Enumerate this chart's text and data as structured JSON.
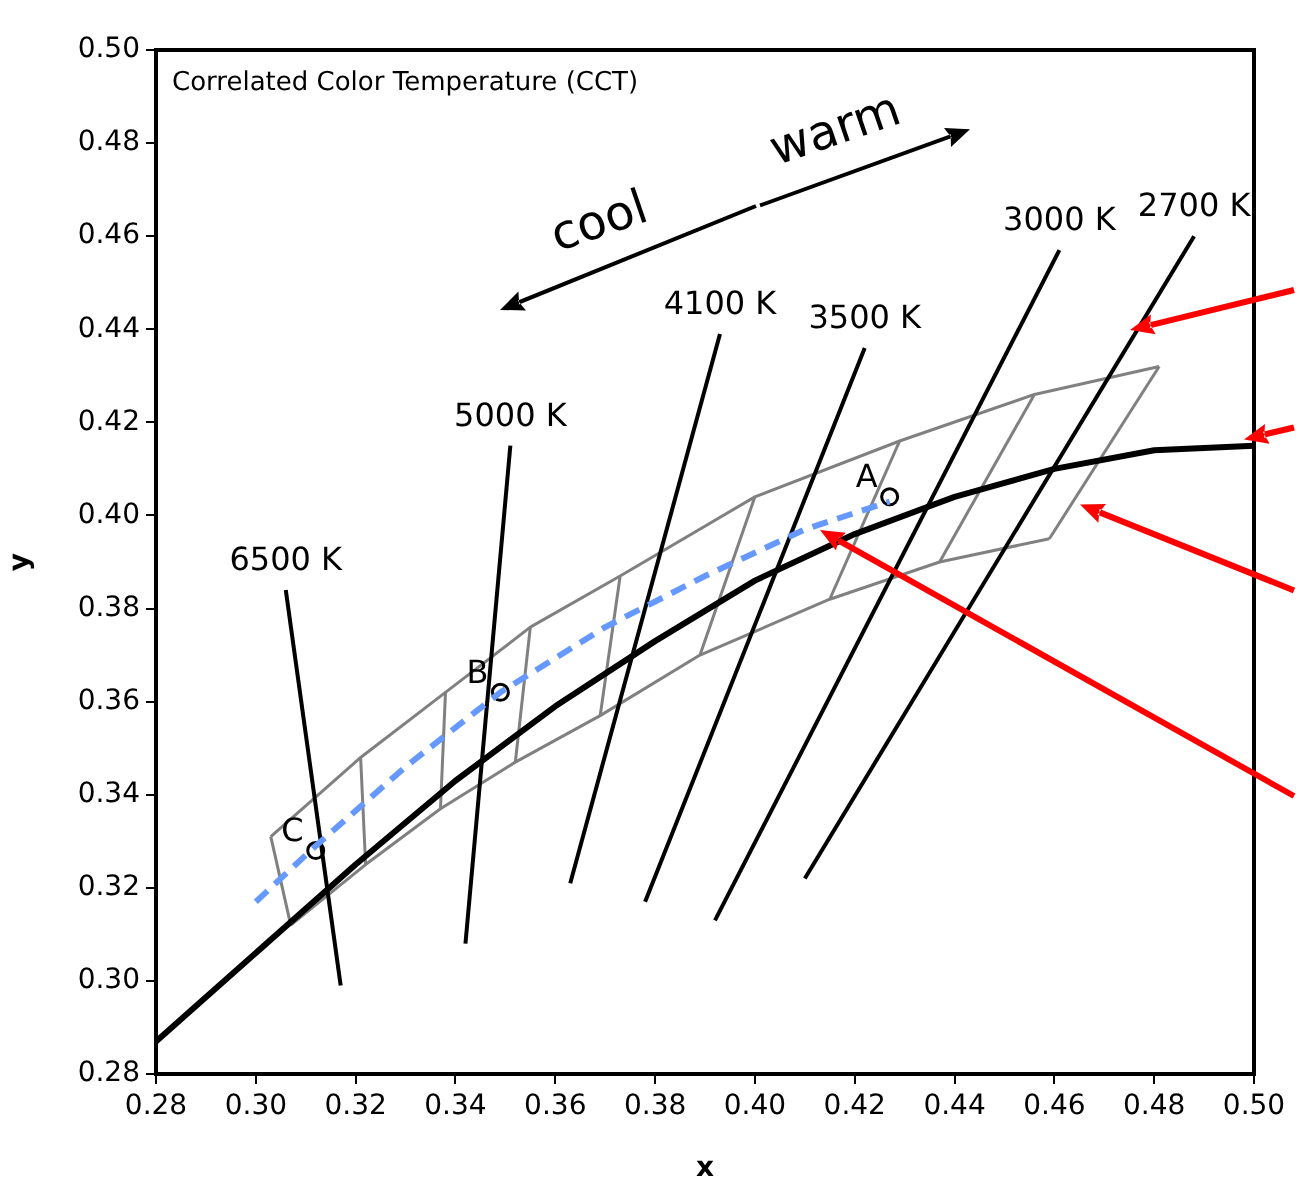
{
  "chart_data": {
    "type": "line",
    "title": "Correlated Color Temperature (CCT)",
    "xlabel": "x",
    "ylabel": "y",
    "xlim": [
      0.28,
      0.5
    ],
    "xticks": [
      {
        "value": 0.28,
        "label": "0.28"
      },
      {
        "value": 0.3,
        "label": "0.30"
      },
      {
        "value": 0.32,
        "label": "0.32"
      },
      {
        "value": 0.34,
        "label": "0.34"
      },
      {
        "value": 0.36,
        "label": "0.36"
      },
      {
        "value": 0.38,
        "label": "0.38"
      },
      {
        "value": 0.4,
        "label": "0.40"
      },
      {
        "value": 0.42,
        "label": "0.42"
      },
      {
        "value": 0.44,
        "label": "0.44"
      },
      {
        "value": 0.46,
        "label": "0.46"
      },
      {
        "value": 0.48,
        "label": "0.48"
      },
      {
        "value": 0.5,
        "label": "0.50"
      }
    ],
    "ylim": [
      0.28,
      0.5
    ],
    "yticks": [
      {
        "value": 0.28,
        "label": "0.28"
      },
      {
        "value": 0.3,
        "label": "0.30"
      },
      {
        "value": 0.32,
        "label": "0.32"
      },
      {
        "value": 0.34,
        "label": "0.34"
      },
      {
        "value": 0.36,
        "label": "0.36"
      },
      {
        "value": 0.38,
        "label": "0.38"
      },
      {
        "value": 0.4,
        "label": "0.40"
      },
      {
        "value": 0.42,
        "label": "0.42"
      },
      {
        "value": 0.44,
        "label": "0.44"
      },
      {
        "value": 0.46,
        "label": "0.46"
      },
      {
        "value": 0.48,
        "label": "0.48"
      },
      {
        "value": 0.5,
        "label": "0.50"
      }
    ],
    "grid": false,
    "legend": false,
    "marker": "none",
    "series": [
      {
        "color": "#000000",
        "x": [
          0.28,
          0.3,
          0.32,
          0.34,
          0.36,
          0.38,
          0.4,
          0.42,
          0.44,
          0.46,
          0.48,
          0.5
        ],
        "values": [
          0.287,
          0.306,
          0.325,
          0.343,
          0.359,
          0.373,
          0.386,
          0.396,
          0.404,
          0.41,
          0.414,
          0.415
        ]
      },
      {
        "color": "#6699ff",
        "line_style": "dashed",
        "x": [
          0.3,
          0.312,
          0.33,
          0.349,
          0.37,
          0.39,
          0.41,
          0.427
        ],
        "values": [
          0.317,
          0.329,
          0.346,
          0.362,
          0.376,
          0.387,
          0.397,
          0.403
        ]
      },
      {
        "name": "6500 K",
        "color": "#000000",
        "x": [
          0.306,
          0.317
        ],
        "values": [
          0.384,
          0.299
        ]
      },
      {
        "name": "5000 K",
        "color": "#000000",
        "x": [
          0.351,
          0.342
        ],
        "values": [
          0.415,
          0.308
        ]
      },
      {
        "name": "4100 K",
        "color": "#000000",
        "x": [
          0.393,
          0.363
        ],
        "values": [
          0.439,
          0.321
        ]
      },
      {
        "name": "3500 K",
        "color": "#000000",
        "x": [
          0.422,
          0.378
        ],
        "values": [
          0.436,
          0.317
        ]
      },
      {
        "name": "3000 K",
        "color": "#000000",
        "x": [
          0.461,
          0.392
        ],
        "values": [
          0.457,
          0.313
        ]
      },
      {
        "name": "2700 K",
        "color": "#000000",
        "x": [
          0.488,
          0.41
        ],
        "values": [
          0.46,
          0.322
        ]
      },
      {
        "color": "#808080",
        "x": [
          0.303,
          0.321,
          0.338,
          0.355,
          0.373,
          0.4,
          0.429,
          0.456,
          0.481
        ],
        "values": [
          0.331,
          0.348,
          0.362,
          0.376,
          0.387,
          0.404,
          0.416,
          0.426,
          0.432
        ]
      },
      {
        "color": "#808080",
        "x": [
          0.307,
          0.322,
          0.337,
          0.352,
          0.369,
          0.389,
          0.415,
          0.437,
          0.459
        ],
        "values": [
          0.312,
          0.325,
          0.337,
          0.347,
          0.357,
          0.37,
          0.382,
          0.39,
          0.395
        ]
      },
      {
        "color": "#808080",
        "x": [
          0.303,
          0.307
        ],
        "values": [
          0.331,
          0.312
        ]
      },
      {
        "color": "#808080",
        "x": [
          0.321,
          0.322
        ],
        "values": [
          0.348,
          0.325
        ]
      },
      {
        "color": "#808080",
        "x": [
          0.338,
          0.337
        ],
        "values": [
          0.362,
          0.337
        ]
      },
      {
        "color": "#808080",
        "x": [
          0.355,
          0.352
        ],
        "values": [
          0.376,
          0.347
        ]
      },
      {
        "color": "#808080",
        "x": [
          0.373,
          0.369
        ],
        "values": [
          0.387,
          0.357
        ]
      },
      {
        "color": "#808080",
        "x": [
          0.4,
          0.389
        ],
        "values": [
          0.404,
          0.37
        ]
      },
      {
        "color": "#808080",
        "x": [
          0.429,
          0.415
        ],
        "values": [
          0.416,
          0.382
        ]
      },
      {
        "color": "#808080",
        "x": [
          0.456,
          0.437
        ],
        "values": [
          0.426,
          0.39
        ]
      },
      {
        "color": "#808080",
        "x": [
          0.481,
          0.459
        ],
        "values": [
          0.432,
          0.395
        ]
      },
      {
        "type": "scatter",
        "marker": "circle",
        "color": "#000000",
        "x": [
          0.427,
          0.349,
          0.312
        ],
        "values": [
          0.404,
          0.362,
          0.328
        ]
      }
    ],
    "annotations": [
      {
        "text": "A",
        "x": 0.427,
        "y": 0.404
      },
      {
        "text": "B",
        "x": 0.349,
        "y": 0.362
      },
      {
        "text": "C",
        "x": 0.312,
        "y": 0.328
      },
      "cool",
      "warm"
    ]
  }
}
